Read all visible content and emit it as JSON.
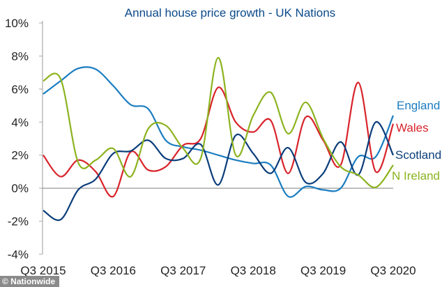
{
  "chart_data": {
    "type": "line",
    "title": "Annual house price growth - UK Nations",
    "xlabel": "",
    "ylabel": "",
    "ylim": [
      -4,
      10
    ],
    "y_ticks": [
      "10%",
      "8%",
      "6%",
      "4%",
      "2%",
      "0%",
      "-2%",
      "-4%"
    ],
    "y_tick_values": [
      10,
      8,
      6,
      4,
      2,
      0,
      -2,
      -4
    ],
    "x_ticks": [
      "Q3 2015",
      "Q3 2016",
      "Q3 2017",
      "Q3 2018",
      "Q3 2019",
      "Q3 2020"
    ],
    "x_tick_index": [
      0,
      4,
      8,
      12,
      16,
      20
    ],
    "x": [
      "Q3 2015",
      "Q4 2015",
      "Q1 2016",
      "Q2 2016",
      "Q3 2016",
      "Q4 2016",
      "Q1 2017",
      "Q2 2017",
      "Q3 2017",
      "Q4 2017",
      "Q1 2018",
      "Q2 2018",
      "Q3 2018",
      "Q4 2018",
      "Q1 2019",
      "Q2 2019",
      "Q3 2019",
      "Q4 2019",
      "Q1 2020",
      "Q2 2020",
      "Q3 2020"
    ],
    "grid": false,
    "legend": "end-of-line labels",
    "series": [
      {
        "name": "England",
        "color": "#1a7dc0",
        "values": [
          5.7,
          6.5,
          7.25,
          7.2,
          6.2,
          5.05,
          4.8,
          2.9,
          2.5,
          2.3,
          2.0,
          1.7,
          1.5,
          1.4,
          -0.5,
          0.1,
          -0.1,
          0.0,
          1.9,
          1.9,
          4.4
        ]
      },
      {
        "name": "Wales",
        "color": "#d8232a",
        "values": [
          2.0,
          0.7,
          1.7,
          1.0,
          -0.5,
          2.2,
          1.1,
          1.3,
          2.6,
          3.0,
          6.1,
          4.0,
          3.4,
          4.1,
          0.9,
          4.3,
          2.9,
          1.4,
          6.4,
          1.0,
          3.9
        ]
      },
      {
        "name": "Scotland",
        "color": "#0a3d7a",
        "values": [
          -1.35,
          -1.9,
          -0.1,
          0.55,
          2.1,
          2.25,
          2.9,
          1.8,
          1.8,
          2.65,
          0.2,
          3.2,
          2.1,
          0.9,
          2.45,
          0.35,
          0.9,
          2.8,
          0.8,
          4.0,
          2.0
        ]
      },
      {
        "name": "N Ireland",
        "color": "#8cb31f",
        "values": [
          6.5,
          6.6,
          1.55,
          1.7,
          2.4,
          0.7,
          3.6,
          3.8,
          2.4,
          1.8,
          7.9,
          2.0,
          4.4,
          5.8,
          3.3,
          5.2,
          3.0,
          1.3,
          0.8,
          0.05,
          1.4
        ]
      }
    ]
  },
  "watermark": "© Nationwide"
}
